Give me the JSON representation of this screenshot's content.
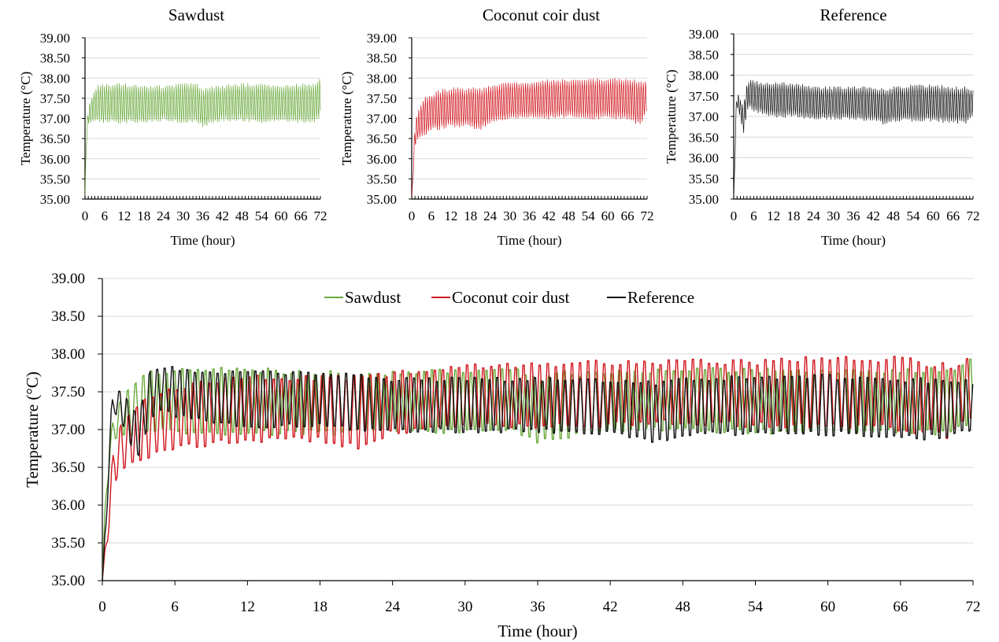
{
  "chart_data": [
    {
      "id": "sawdust",
      "type": "line",
      "title": "Sawdust",
      "xlabel": "Time (hour)",
      "ylabel": "Temperature (°C)",
      "xlim": [
        0,
        72
      ],
      "ylim": [
        35.0,
        39.0
      ],
      "xticks": [
        "0",
        "6",
        "12",
        "18",
        "24",
        "30",
        "36",
        "42",
        "48",
        "54",
        "60",
        "66",
        "72"
      ],
      "yticks": [
        "35.00",
        "35.50",
        "36.00",
        "36.50",
        "37.00",
        "37.50",
        "38.00",
        "38.50",
        "39.00"
      ],
      "grid": true,
      "series": [
        {
          "color": "#6aaa3c",
          "x": [
            0,
            0.2,
            0.4,
            0.6,
            0.8,
            1,
            1.5,
            2,
            3,
            4,
            6,
            9,
            12,
            18,
            24,
            30,
            34,
            36,
            38,
            42,
            48,
            54,
            60,
            66,
            70,
            72
          ],
          "ymin": [
            35.0,
            35.6,
            36.2,
            36.5,
            36.6,
            36.8,
            36.85,
            36.85,
            36.9,
            36.9,
            36.85,
            36.85,
            36.85,
            36.85,
            36.9,
            36.85,
            36.9,
            36.75,
            36.8,
            36.9,
            36.9,
            36.85,
            36.9,
            36.85,
            36.85,
            36.95
          ],
          "ymax": [
            35.0,
            35.9,
            36.6,
            36.9,
            37.1,
            37.3,
            37.45,
            37.55,
            37.75,
            37.85,
            37.9,
            37.9,
            37.9,
            37.85,
            37.85,
            37.9,
            37.9,
            37.75,
            37.85,
            37.85,
            37.9,
            37.9,
            37.85,
            37.9,
            37.9,
            38.05
          ],
          "cycles_per_hour": 1.55
        }
      ]
    },
    {
      "id": "coconut",
      "type": "line",
      "title": "Coconut coir dust",
      "xlabel": "Time (hour)",
      "ylabel": "Temperature (°C)",
      "xlim": [
        0,
        72
      ],
      "ylim": [
        35.0,
        39.0
      ],
      "xticks": [
        "0",
        "6",
        "12",
        "18",
        "24",
        "30",
        "36",
        "42",
        "48",
        "54",
        "60",
        "66",
        "72"
      ],
      "yticks": [
        "35.00",
        "35.50",
        "36.00",
        "36.50",
        "37.00",
        "37.50",
        "38.00",
        "38.50",
        "39.00"
      ],
      "grid": true,
      "series": [
        {
          "color": "#d0141c",
          "x": [
            0,
            0.3,
            0.5,
            0.8,
            1,
            1.5,
            2,
            3,
            4,
            6,
            9,
            12,
            18,
            21,
            24,
            30,
            36,
            42,
            48,
            54,
            60,
            66,
            70,
            72
          ],
          "ymin": [
            35.0,
            35.2,
            35.6,
            36.0,
            36.2,
            36.4,
            36.45,
            36.5,
            36.55,
            36.65,
            36.7,
            36.75,
            36.75,
            36.65,
            36.85,
            36.95,
            36.95,
            36.95,
            37.0,
            36.95,
            36.95,
            36.9,
            36.8,
            37.1
          ],
          "ymax": [
            35.0,
            35.6,
            36.2,
            36.6,
            36.9,
            37.1,
            37.25,
            37.4,
            37.55,
            37.65,
            37.75,
            37.8,
            37.8,
            37.8,
            37.85,
            37.95,
            37.95,
            38.0,
            38.0,
            38.0,
            38.05,
            38.05,
            37.95,
            38.05
          ],
          "cycles_per_hour": 1.5
        }
      ]
    },
    {
      "id": "reference",
      "type": "line",
      "title": "Reference",
      "xlabel": "Time (hour)",
      "ylabel": "Temperature (°C)",
      "xlim": [
        0,
        72
      ],
      "ylim": [
        35.0,
        39.0
      ],
      "xticks": [
        "0",
        "6",
        "12",
        "18",
        "24",
        "30",
        "36",
        "42",
        "48",
        "54",
        "60",
        "66",
        "72"
      ],
      "yticks": [
        "35.00",
        "35.50",
        "36.00",
        "36.50",
        "37.00",
        "37.50",
        "38.00",
        "38.50",
        "39.00"
      ],
      "grid": true,
      "series": [
        {
          "color": "#111111",
          "x": [
            0,
            0.3,
            0.5,
            0.8,
            1,
            1.5,
            2,
            2.5,
            3,
            3.5,
            4,
            5,
            6,
            9,
            12,
            18,
            24,
            30,
            36,
            42,
            46,
            48,
            54,
            60,
            66,
            70,
            72
          ],
          "ymin": [
            35.0,
            35.5,
            36.3,
            37.0,
            37.2,
            37.1,
            36.9,
            36.7,
            36.55,
            36.8,
            37.1,
            37.2,
            37.1,
            37.0,
            36.95,
            36.95,
            36.9,
            36.9,
            36.9,
            36.85,
            36.75,
            36.85,
            36.85,
            36.85,
            36.8,
            36.8,
            36.95
          ],
          "ymax": [
            35.0,
            35.9,
            36.9,
            37.4,
            37.55,
            37.55,
            37.45,
            37.35,
            37.3,
            37.6,
            37.85,
            37.9,
            37.9,
            37.85,
            37.85,
            37.85,
            37.75,
            37.75,
            37.75,
            37.75,
            37.7,
            37.75,
            37.8,
            37.8,
            37.75,
            37.75,
            37.7
          ],
          "cycles_per_hour": 1.6
        }
      ]
    },
    {
      "id": "combined",
      "type": "line",
      "title": "",
      "xlabel": "Time (hour)",
      "ylabel": "Temperature (°C)",
      "xlim": [
        0,
        72
      ],
      "ylim": [
        35.0,
        39.0
      ],
      "xticks": [
        "0",
        "6",
        "12",
        "18",
        "24",
        "30",
        "36",
        "42",
        "48",
        "54",
        "60",
        "66",
        "72"
      ],
      "yticks": [
        "35.00",
        "35.50",
        "36.00",
        "36.50",
        "37.00",
        "37.50",
        "38.00",
        "38.50",
        "39.00"
      ],
      "grid": true,
      "legend": "top-center",
      "series": [
        {
          "name": "Sawdust",
          "color": "#6aaa3c",
          "x": [
            0,
            0.2,
            0.4,
            0.6,
            0.8,
            1,
            1.5,
            2,
            3,
            4,
            6,
            9,
            12,
            18,
            24,
            30,
            34,
            36,
            38,
            42,
            48,
            54,
            60,
            66,
            70,
            72
          ],
          "ymin": [
            35.0,
            35.6,
            36.2,
            36.5,
            36.6,
            36.8,
            36.85,
            36.85,
            36.9,
            36.9,
            36.85,
            36.85,
            36.85,
            36.85,
            36.9,
            36.85,
            36.9,
            36.75,
            36.8,
            36.9,
            36.9,
            36.85,
            36.9,
            36.85,
            36.85,
            36.95
          ],
          "ymax": [
            35.0,
            35.9,
            36.6,
            36.9,
            37.1,
            37.3,
            37.45,
            37.55,
            37.75,
            37.85,
            37.9,
            37.9,
            37.9,
            37.85,
            37.85,
            37.9,
            37.9,
            37.75,
            37.85,
            37.85,
            37.9,
            37.9,
            37.85,
            37.9,
            37.9,
            38.05
          ],
          "cycles_per_hour": 1.55
        },
        {
          "name": "Coconut coir dust",
          "color": "#d0141c",
          "x": [
            0,
            0.3,
            0.5,
            0.8,
            1,
            1.5,
            2,
            3,
            4,
            6,
            9,
            12,
            18,
            21,
            24,
            30,
            36,
            42,
            48,
            54,
            60,
            66,
            70,
            72
          ],
          "ymin": [
            35.0,
            35.2,
            35.6,
            36.0,
            36.2,
            36.4,
            36.45,
            36.5,
            36.55,
            36.65,
            36.7,
            36.75,
            36.75,
            36.65,
            36.85,
            36.95,
            36.95,
            36.95,
            37.0,
            36.95,
            36.95,
            36.9,
            36.8,
            37.1
          ],
          "ymax": [
            35.0,
            35.6,
            36.2,
            36.6,
            36.9,
            37.1,
            37.25,
            37.4,
            37.55,
            37.65,
            37.75,
            37.8,
            37.8,
            37.8,
            37.85,
            37.95,
            37.95,
            38.0,
            38.0,
            38.0,
            38.05,
            38.05,
            37.95,
            38.05
          ],
          "cycles_per_hour": 1.5
        },
        {
          "name": "Reference",
          "color": "#111111",
          "x": [
            0,
            0.3,
            0.5,
            0.8,
            1,
            1.5,
            2,
            2.5,
            3,
            3.5,
            4,
            5,
            6,
            9,
            12,
            18,
            24,
            30,
            36,
            42,
            46,
            48,
            54,
            60,
            66,
            70,
            72
          ],
          "ymin": [
            35.0,
            35.5,
            36.3,
            37.0,
            37.2,
            37.1,
            36.9,
            36.7,
            36.55,
            36.8,
            37.1,
            37.2,
            37.1,
            37.0,
            36.95,
            36.95,
            36.9,
            36.9,
            36.9,
            36.85,
            36.75,
            36.85,
            36.85,
            36.85,
            36.8,
            36.8,
            36.95
          ],
          "ymax": [
            35.0,
            35.9,
            36.9,
            37.4,
            37.55,
            37.55,
            37.45,
            37.35,
            37.3,
            37.6,
            37.85,
            37.9,
            37.9,
            37.85,
            37.85,
            37.85,
            37.75,
            37.75,
            37.75,
            37.75,
            37.7,
            37.75,
            37.8,
            37.8,
            37.75,
            37.75,
            37.7
          ],
          "cycles_per_hour": 1.6
        }
      ]
    }
  ]
}
